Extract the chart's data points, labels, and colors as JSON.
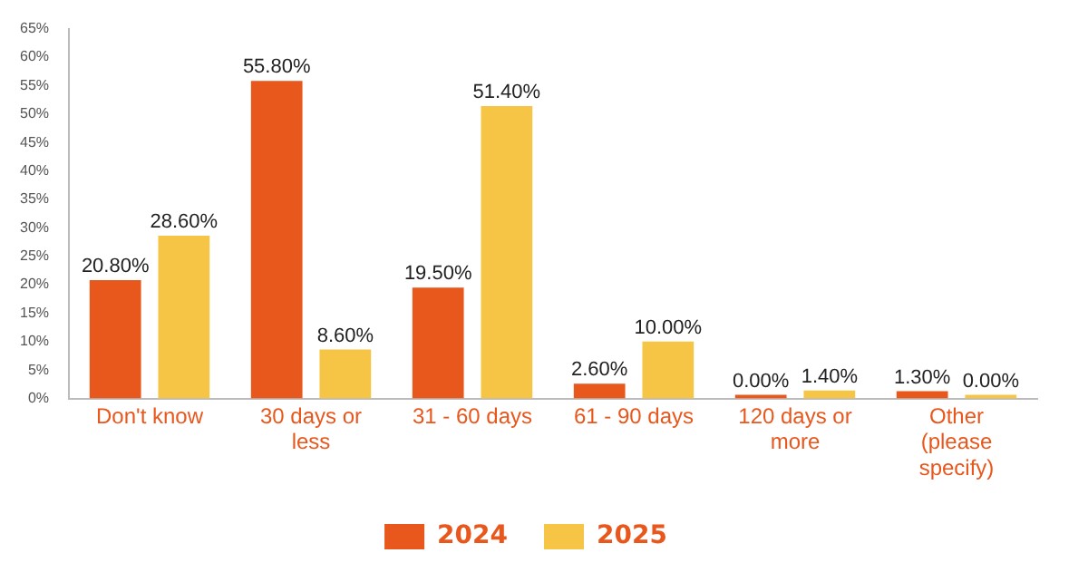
{
  "chart_data": {
    "type": "bar",
    "categories": [
      "Don't know",
      "30 days or less",
      "31 - 60 days",
      "61 - 90 days",
      "120 days or more",
      "Other (please specify)"
    ],
    "series": [
      {
        "name": "2024",
        "color": "#e8571c",
        "values": [
          20.8,
          55.8,
          19.5,
          2.6,
          0,
          1.3
        ],
        "value_labels": [
          "20.80%",
          "55.80%",
          "19.50%",
          "2.60%",
          "0.00%",
          "1.30%"
        ]
      },
      {
        "name": "2025",
        "color": "#f6c545",
        "values": [
          28.6,
          8.6,
          51.4,
          10,
          1.4,
          0
        ],
        "value_labels": [
          "28.60%",
          "8.60%",
          "51.40%",
          "10.00%",
          "1.40%",
          "0.00%"
        ]
      }
    ],
    "ylim": [
      0,
      65
    ],
    "yticks": [
      {
        "value": 0,
        "label": "0%"
      },
      {
        "value": 5,
        "label": "5%"
      },
      {
        "value": 10,
        "label": "10%"
      },
      {
        "value": 15,
        "label": "15%"
      },
      {
        "value": 20,
        "label": "20%"
      },
      {
        "value": 25,
        "label": "25%"
      },
      {
        "value": 30,
        "label": "30%"
      },
      {
        "value": 35,
        "label": "35%"
      },
      {
        "value": 40,
        "label": "40%"
      },
      {
        "value": 45,
        "label": "45%"
      },
      {
        "value": 50,
        "label": "50%"
      },
      {
        "value": 55,
        "label": "55%"
      },
      {
        "value": 60,
        "label": "60%"
      },
      {
        "value": 65,
        "label": "65%"
      }
    ],
    "legend": "bottom",
    "grid": false
  }
}
